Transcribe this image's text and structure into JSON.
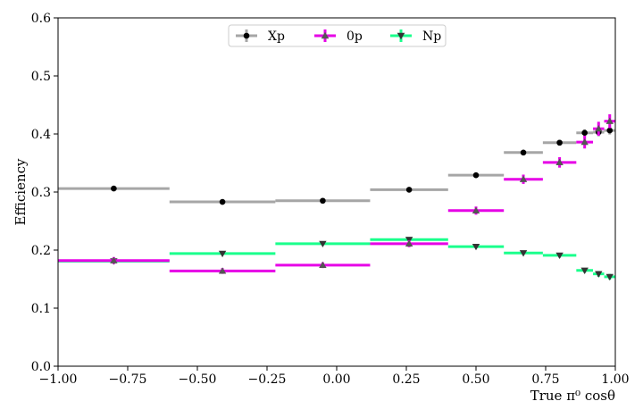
{
  "chart_data": {
    "type": "scatter",
    "title": "",
    "xlabel": "True π⁰ cosθ",
    "ylabel": "Efficiency",
    "xlim": [
      -1.0,
      1.0
    ],
    "ylim": [
      0.0,
      0.6
    ],
    "xticks": [
      "−1.00",
      "−0.75",
      "−0.50",
      "−0.25",
      "0.00",
      "0.25",
      "0.50",
      "0.75",
      "1.00"
    ],
    "yticks": [
      "0.0",
      "0.1",
      "0.2",
      "0.3",
      "0.4",
      "0.5",
      "0.6"
    ],
    "grid": false,
    "legend_position": "top-center",
    "bins": [
      [
        -1.0,
        -0.6
      ],
      [
        -0.6,
        -0.22
      ],
      [
        -0.22,
        0.12
      ],
      [
        0.12,
        0.4
      ],
      [
        0.4,
        0.6
      ],
      [
        0.6,
        0.74
      ],
      [
        0.74,
        0.86
      ],
      [
        0.86,
        0.92
      ],
      [
        0.92,
        0.96
      ],
      [
        0.96,
        1.0
      ]
    ],
    "bin_centers": [
      -0.8,
      -0.41,
      -0.05,
      0.26,
      0.5,
      0.67,
      0.8,
      0.89,
      0.94,
      0.98
    ],
    "series": [
      {
        "name": "Xp",
        "marker": "circle",
        "bar_color": "#a6a6a6",
        "marker_color": "#000000",
        "values": [
          0.306,
          0.283,
          0.285,
          0.304,
          0.329,
          0.368,
          0.385,
          0.402,
          0.403,
          0.406
        ],
        "errors": [
          0.002,
          0.002,
          0.002,
          0.002,
          0.003,
          0.004,
          0.005,
          0.006,
          0.007,
          0.007
        ]
      },
      {
        "name": "0p",
        "marker": "triangle-up",
        "bar_color": "#e600e6",
        "marker_color": "#555555",
        "values": [
          0.182,
          0.164,
          0.174,
          0.211,
          0.268,
          0.322,
          0.351,
          0.386,
          0.409,
          0.422
        ],
        "errors": [
          0.006,
          0.005,
          0.005,
          0.006,
          0.007,
          0.008,
          0.009,
          0.011,
          0.012,
          0.012
        ]
      },
      {
        "name": "Np",
        "marker": "triangle-down",
        "bar_color": "#1aff8c",
        "marker_color": "#333333",
        "values": [
          0.181,
          0.194,
          0.211,
          0.218,
          0.206,
          0.195,
          0.191,
          0.165,
          0.159,
          0.154
        ],
        "errors": [
          0.002,
          0.002,
          0.002,
          0.002,
          0.003,
          0.003,
          0.004,
          0.004,
          0.005,
          0.005
        ]
      }
    ]
  }
}
